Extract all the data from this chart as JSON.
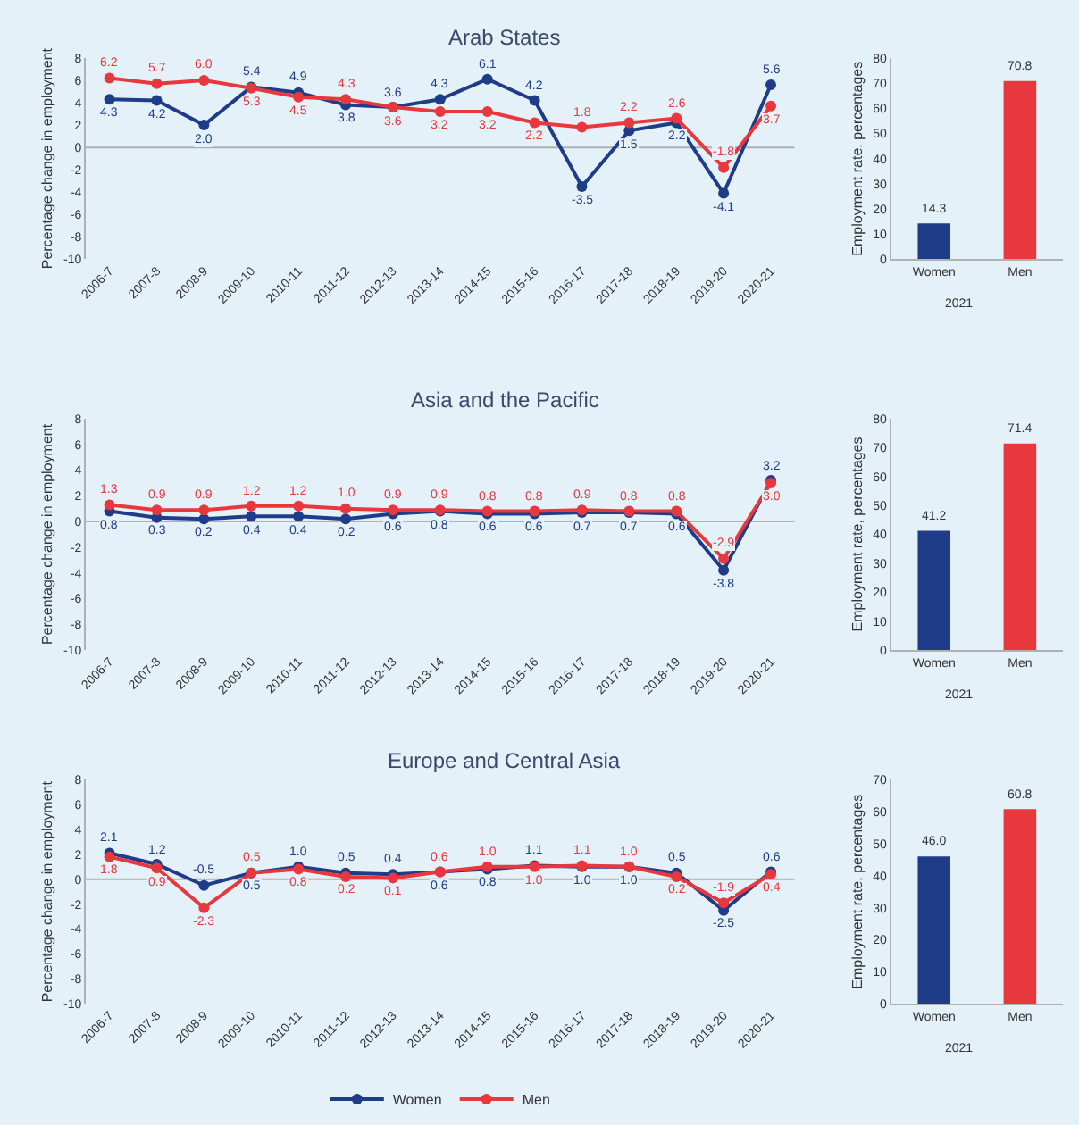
{
  "chart_data": [
    {
      "type": "line",
      "title": "Arab States",
      "ylabel": "Percentage change in employment",
      "categories": [
        "2006-7",
        "2007-8",
        "2008-9",
        "2009-10",
        "2010-11",
        "2011-12",
        "2012-13",
        "2013-14",
        "2014-15",
        "2015-16",
        "2016-17",
        "2017-18",
        "2018-19",
        "2019-20",
        "2020-21"
      ],
      "series": [
        {
          "color": "#1f3c88",
          "values": [
            4.3,
            4.2,
            2.0,
            5.4,
            4.9,
            3.8,
            3.6,
            4.3,
            6.1,
            4.2,
            -3.5,
            1.5,
            2.2,
            -4.1,
            5.6
          ],
          "value_labels": [
            "4.3",
            "4.2",
            "2.0",
            "5.4",
            "4.9",
            "3.8",
            "3.6",
            "4.3",
            "6.1",
            "4.2",
            "-3.5",
            "1.5",
            "2.2",
            "-4.1",
            "5.6"
          ]
        },
        {
          "color": "#e8383d",
          "values": [
            6.2,
            5.7,
            6.0,
            5.3,
            4.5,
            4.3,
            3.6,
            3.2,
            3.2,
            2.2,
            1.8,
            2.2,
            2.6,
            -1.8,
            3.7
          ],
          "value_labels": [
            "6.2",
            "5.7",
            "6.0",
            "5.3",
            "4.5",
            "4.3",
            "3.6",
            "3.2",
            "3.2",
            "2.2",
            "1.8",
            "2.2",
            "2.6",
            "-1.8",
            "3.7"
          ]
        }
      ],
      "ylim": [
        -10,
        8
      ],
      "yticks": [
        -10,
        -8,
        -6,
        -4,
        -2,
        0,
        2,
        4,
        6,
        8
      ],
      "marker": "circle",
      "line_style": "solid",
      "ref_lines": [
        {
          "axis": "y",
          "value": 0,
          "color": "#b0b0b0"
        }
      ]
    },
    {
      "type": "bar",
      "ylabel": "Employment rate, percentages",
      "xlabel": "2021",
      "categories": [
        "Women",
        "Men"
      ],
      "values": [
        14.3,
        70.8
      ],
      "value_labels": [
        "14.3",
        "70.8"
      ],
      "colors": [
        "#1f3c88",
        "#e8383d"
      ],
      "ylim": [
        0,
        80
      ],
      "yticks": [
        0,
        10,
        20,
        30,
        40,
        50,
        60,
        70,
        80
      ]
    },
    {
      "type": "line",
      "title": "Asia and the Pacific",
      "ylabel": "Percentage change in employment",
      "categories": [
        "2006-7",
        "2007-8",
        "2008-9",
        "2009-10",
        "2010-11",
        "2011-12",
        "2012-13",
        "2013-14",
        "2014-15",
        "2015-16",
        "2016-17",
        "2017-18",
        "2018-19",
        "2019-20",
        "2020-21"
      ],
      "series": [
        {
          "color": "#1f3c88",
          "values": [
            0.8,
            0.3,
            0.2,
            0.4,
            0.4,
            0.2,
            0.6,
            0.8,
            0.6,
            0.6,
            0.7,
            0.7,
            0.6,
            -3.8,
            3.2
          ],
          "value_labels": [
            "0.8",
            "0.3",
            "0.2",
            "0.4",
            "0.4",
            "0.2",
            "0.6",
            "0.8",
            "0.6",
            "0.6",
            "0.7",
            "0.7",
            "0.6",
            "-3.8",
            "3.2"
          ]
        },
        {
          "color": "#e8383d",
          "values": [
            1.3,
            0.9,
            0.9,
            1.2,
            1.2,
            1.0,
            0.9,
            0.9,
            0.8,
            0.8,
            0.9,
            0.8,
            0.8,
            -2.9,
            3.0
          ],
          "value_labels": [
            "1.3",
            "0.9",
            "0.9",
            "1.2",
            "1.2",
            "1.0",
            "0.9",
            "0.9",
            "0.8",
            "0.8",
            "0.9",
            "0.8",
            "0.8",
            "-2.9",
            "3.0"
          ]
        }
      ],
      "ylim": [
        -10,
        8
      ],
      "yticks": [
        -10,
        -8,
        -6,
        -4,
        -2,
        0,
        2,
        4,
        6,
        8
      ],
      "marker": "circle",
      "line_style": "solid",
      "ref_lines": [
        {
          "axis": "y",
          "value": 0,
          "color": "#b0b0b0"
        }
      ]
    },
    {
      "type": "bar",
      "ylabel": "Employment rate, percentages",
      "xlabel": "2021",
      "categories": [
        "Women",
        "Men"
      ],
      "values": [
        41.2,
        71.4
      ],
      "value_labels": [
        "41.2",
        "71.4"
      ],
      "colors": [
        "#1f3c88",
        "#e8383d"
      ],
      "ylim": [
        0,
        80
      ],
      "yticks": [
        0,
        10,
        20,
        30,
        40,
        50,
        60,
        70,
        80
      ]
    },
    {
      "type": "line",
      "title": "Europe and Central Asia",
      "ylabel": "Percentage change in employment",
      "categories": [
        "2006-7",
        "2007-8",
        "2008-9",
        "2009-10",
        "2010-11",
        "2011-12",
        "2012-13",
        "2013-14",
        "2014-15",
        "2015-16",
        "2016-17",
        "2017-18",
        "2018-19",
        "2019-20",
        "2020-21"
      ],
      "series": [
        {
          "name": "Women",
          "color": "#1f3c88",
          "values": [
            2.1,
            1.2,
            -0.5,
            0.5,
            1.0,
            0.5,
            0.4,
            0.6,
            0.8,
            1.1,
            1.0,
            1.0,
            0.5,
            -2.5,
            0.6
          ],
          "value_labels": [
            "2.1",
            "1.2",
            "-0.5",
            "0.5",
            "1.0",
            "0.5",
            "0.4",
            "0.6",
            "0.8",
            "1.1",
            "1.0",
            "1.0",
            "0.5",
            "-2.5",
            "0.6"
          ]
        },
        {
          "name": "Men",
          "color": "#e8383d",
          "values": [
            1.8,
            0.9,
            -2.3,
            0.5,
            0.8,
            0.2,
            0.1,
            0.6,
            1.0,
            1.0,
            1.1,
            1.0,
            0.2,
            -1.9,
            0.4
          ],
          "value_labels": [
            "1.8",
            "0.9",
            "-2.3",
            "0.5",
            "0.8",
            "0.2",
            "0.1",
            "0.6",
            "1.0",
            "1.0",
            "1.1",
            "1.0",
            "0.2",
            "-1.9",
            "0.4"
          ]
        }
      ],
      "ylim": [
        -10,
        8
      ],
      "yticks": [
        -10,
        -8,
        -6,
        -4,
        -2,
        0,
        2,
        4,
        6,
        8
      ],
      "marker": "circle",
      "line_style": "solid",
      "ref_lines": [
        {
          "axis": "y",
          "value": 0,
          "color": "#b0b0b0"
        }
      ],
      "legend": "bottom"
    },
    {
      "type": "bar",
      "ylabel": "Employment rate, percentages",
      "xlabel": "2021",
      "categories": [
        "Women",
        "Men"
      ],
      "values": [
        46.0,
        60.8
      ],
      "value_labels": [
        "46.0",
        "60.8"
      ],
      "colors": [
        "#1f3c88",
        "#e8383d"
      ],
      "ylim": [
        0,
        70
      ],
      "yticks": [
        0,
        10,
        20,
        30,
        40,
        50,
        60,
        70
      ]
    }
  ]
}
